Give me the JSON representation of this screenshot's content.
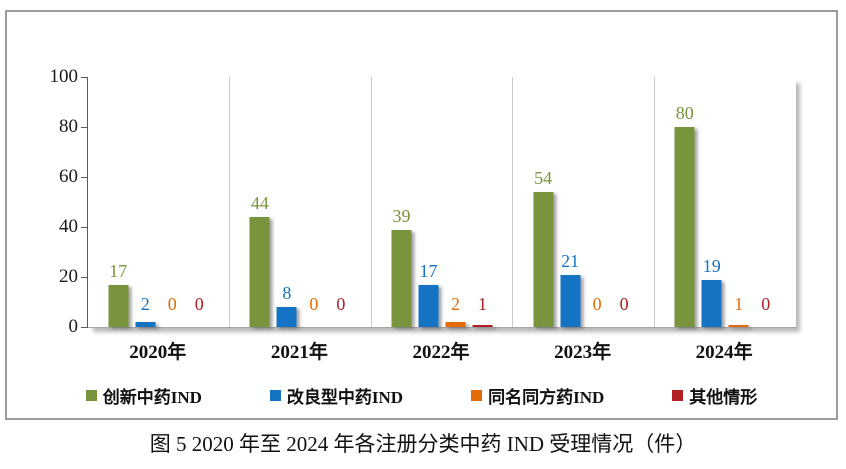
{
  "figure": {
    "caption": "图 5  2020 年至 2024 年各注册分类中药 IND 受理情况（件）"
  },
  "chart_data": {
    "type": "bar",
    "title": "图 5  2020 年至 2024 年各注册分类中药 IND 受理情况（件）",
    "categories": [
      "2020年",
      "2021年",
      "2022年",
      "2023年",
      "2024年"
    ],
    "series": [
      {
        "name": "创新中药IND",
        "color": "#78943C",
        "values": [
          17,
          44,
          39,
          54,
          80
        ]
      },
      {
        "name": "改良型中药IND",
        "color": "#1573C4",
        "values": [
          2,
          8,
          17,
          21,
          19
        ]
      },
      {
        "name": "同名同方药IND",
        "color": "#E36C09",
        "values": [
          0,
          0,
          2,
          0,
          1
        ]
      },
      {
        "name": "其他情形",
        "color": "#B22025",
        "values": [
          0,
          0,
          1,
          0,
          0
        ]
      }
    ],
    "xlabel": "",
    "ylabel": "",
    "ylim": [
      0,
      100
    ],
    "yticks": [
      0,
      20,
      40,
      60,
      80,
      100
    ],
    "grid": "vertical category separators",
    "legend_position": "bottom",
    "data_labels": true
  }
}
